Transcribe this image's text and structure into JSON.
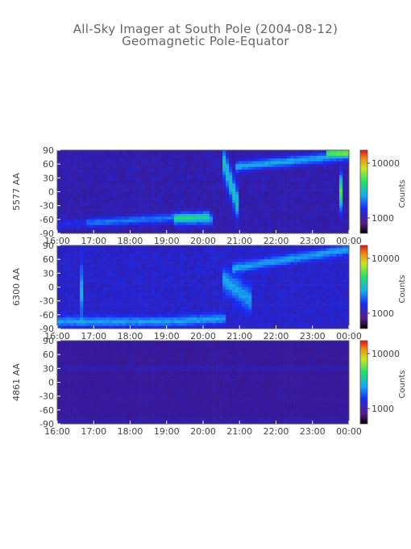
{
  "title": "All-Sky Imager at South Pole (2004-08-12)",
  "subtitle": "Geomagnetic Pole-Equator",
  "colors": {
    "low": "#3a1370",
    "mid": "#1a35f0",
    "high_green": "#29e35a",
    "peak": "#e8311e"
  },
  "chart_data": [
    {
      "type": "heatmap",
      "panel": "5577",
      "ylabel": "5577 AA",
      "x_ticks": [
        "16:00",
        "17:00",
        "18:00",
        "19:00",
        "20:00",
        "21:00",
        "22:00",
        "23:00",
        "00:00"
      ],
      "y_ticks": [
        90,
        60,
        30,
        0,
        -30,
        -60,
        -90
      ],
      "ylim": [
        -90,
        90
      ],
      "colorbar": {
        "label": "Counts",
        "ticks": [
          "10000",
          "1000"
        ]
      }
    },
    {
      "type": "heatmap",
      "panel": "6300",
      "ylabel": "6300 AA",
      "x_ticks": [
        "16:00",
        "17:00",
        "18:00",
        "19:00",
        "20:00",
        "21:00",
        "22:00",
        "23:00",
        "00:00"
      ],
      "y_ticks": [
        90,
        60,
        30,
        0,
        -30,
        -60,
        -90
      ],
      "ylim": [
        -90,
        90
      ],
      "colorbar": {
        "label": "Counts",
        "ticks": [
          "10000",
          "1000"
        ]
      }
    },
    {
      "type": "heatmap",
      "panel": "4861",
      "ylabel": "4861 AA",
      "x_ticks": [
        "16:00",
        "17:00",
        "18:00",
        "19:00",
        "20:00",
        "21:00",
        "22:00",
        "23:00",
        "00:00"
      ],
      "y_ticks": [
        90,
        60,
        30,
        0,
        -30,
        -60,
        -90
      ],
      "ylim": [
        -90,
        90
      ],
      "colorbar": {
        "label": "Counts",
        "ticks": [
          "10000",
          "1000"
        ]
      }
    }
  ]
}
